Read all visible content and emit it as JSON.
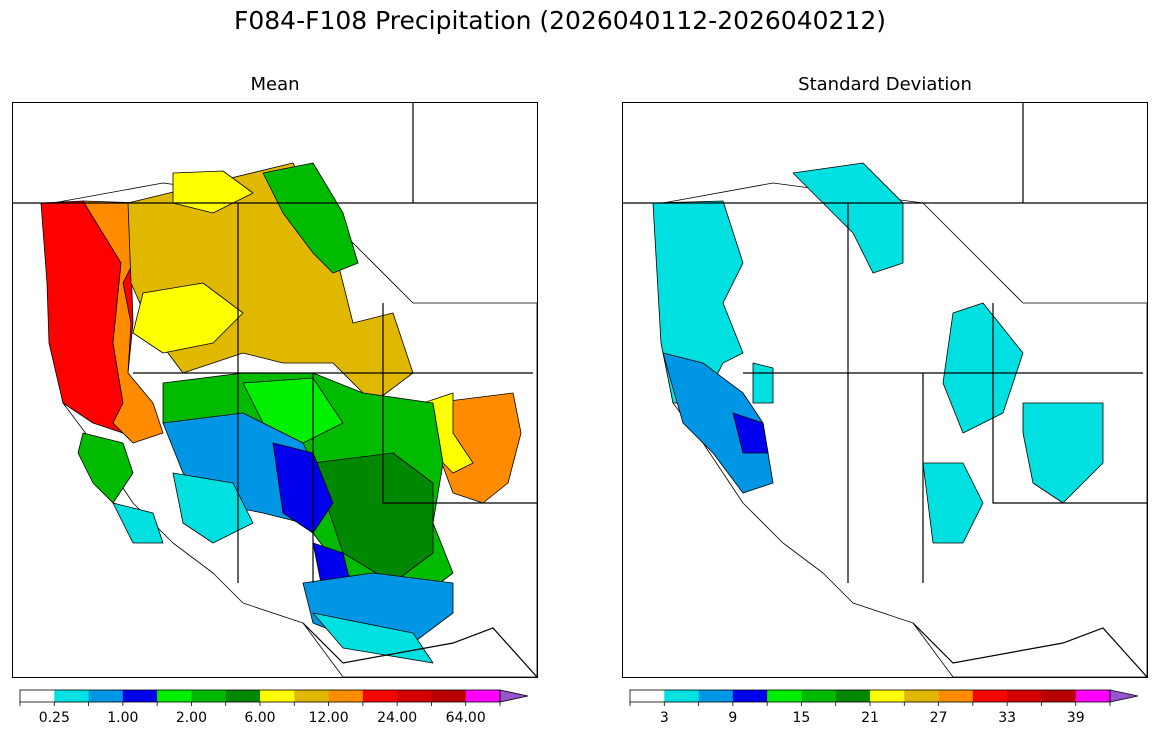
{
  "title": "F084-F108 Precipitation (2026040112-2026040212)",
  "panels": [
    {
      "subtitle": "Mean",
      "colorbar": {
        "colors": [
          "#ffffff",
          "#00e0e0",
          "#0096e6",
          "#0000ee",
          "#00f000",
          "#00bb00",
          "#008800",
          "#ffff00",
          "#e0b800",
          "#ff8c00",
          "#ff0000",
          "#d40000",
          "#b80000",
          "#ff00ff",
          "#9955cc"
        ],
        "tick_labels": [
          "0.25",
          "1.00",
          "2.00",
          "6.00",
          "12.00",
          "24.00",
          "64.00"
        ],
        "extend": "max"
      }
    },
    {
      "subtitle": "Standard Deviation",
      "colorbar": {
        "colors": [
          "#ffffff",
          "#00e0e0",
          "#0096e6",
          "#0000ee",
          "#00f000",
          "#00bb00",
          "#008800",
          "#ffff00",
          "#e0b800",
          "#ff8c00",
          "#ff0000",
          "#d40000",
          "#b80000",
          "#ff00ff",
          "#9955cc"
        ],
        "tick_labels": [
          "3",
          "9",
          "15",
          "21",
          "27",
          "33",
          "39"
        ],
        "extend": "max"
      }
    }
  ]
}
